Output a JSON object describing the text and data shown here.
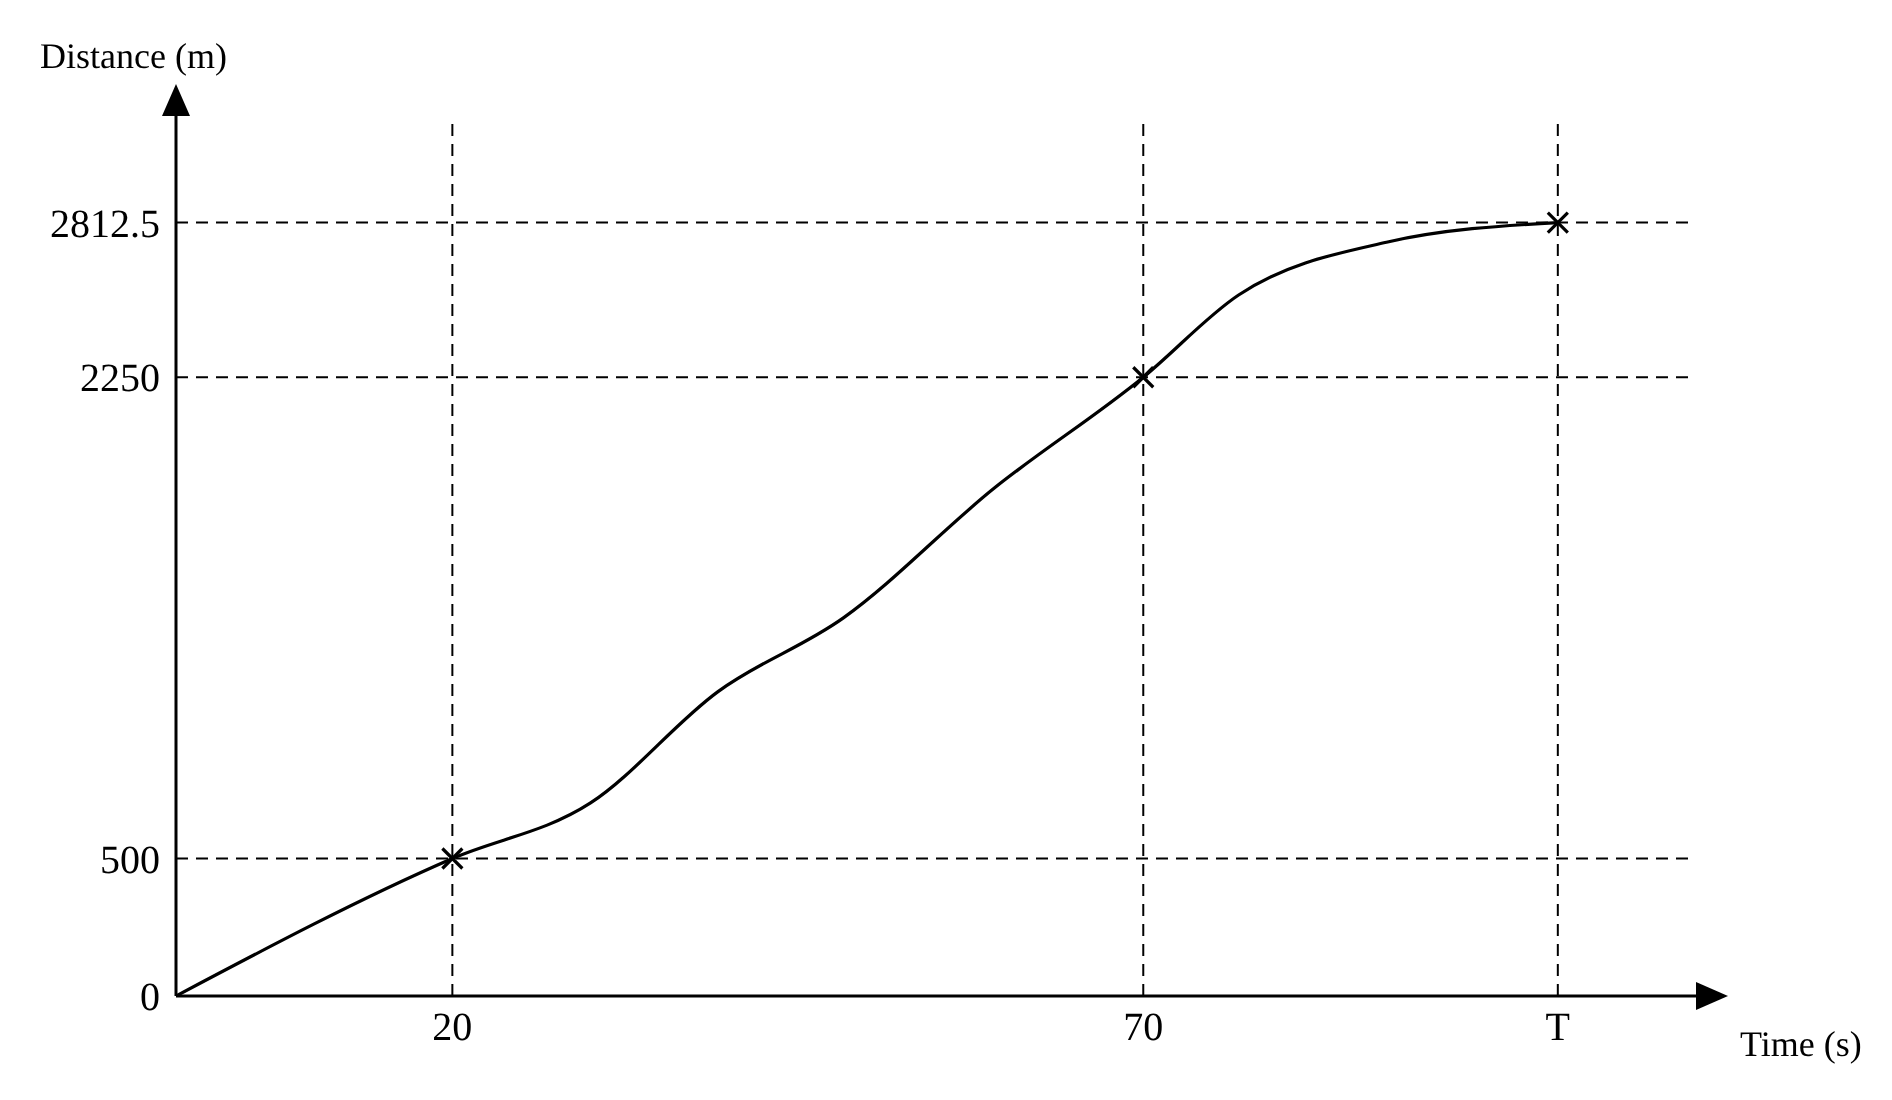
{
  "chart_data": {
    "type": "line",
    "xlabel": "Time (s)",
    "ylabel": "Distance (m)",
    "xlim": [
      0,
      110
    ],
    "ylim": [
      0,
      3200
    ],
    "xticks": [
      20,
      70,
      {
        "value": 100,
        "label": "T"
      }
    ],
    "yticks": [
      0,
      500,
      2250,
      2812.5
    ],
    "series": [
      {
        "color": "#000000",
        "marker": "none",
        "x": [
          0,
          20,
          30,
          39.2,
          48.3,
          59.2,
          70,
          76.9,
          87.6,
          100
        ],
        "values": [
          0,
          500,
          702,
          1106,
          1375,
          1846,
          2250,
          2549,
          2741,
          2812.5
        ]
      },
      {
        "type": "scatter",
        "color": "#000000",
        "marker": "cross",
        "x": [
          20,
          70,
          100
        ],
        "values": [
          500,
          2250,
          2812.5
        ]
      }
    ],
    "ref_lines": [
      {
        "axis": "x",
        "value": 20,
        "line_style": "dashed"
      },
      {
        "axis": "x",
        "value": 70,
        "line_style": "dashed"
      },
      {
        "axis": "x",
        "value": 100,
        "line_style": "dashed"
      },
      {
        "axis": "y",
        "value": 500,
        "line_style": "dashed"
      },
      {
        "axis": "y",
        "value": 2250,
        "line_style": "dashed"
      },
      {
        "axis": "y",
        "value": 2812.5,
        "line_style": "dashed"
      }
    ]
  }
}
